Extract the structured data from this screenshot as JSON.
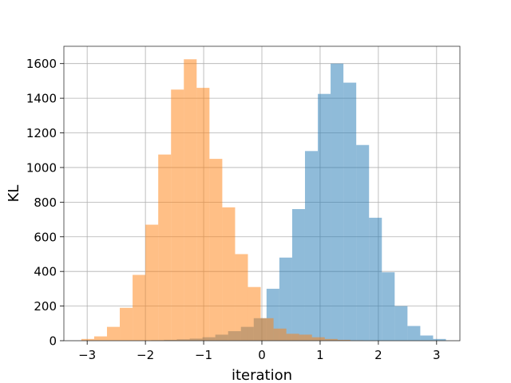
{
  "chart_data": {
    "type": "histogram",
    "title": "",
    "xlabel": "iteration",
    "ylabel": "KL",
    "xlim": [
      -3.4,
      3.4
    ],
    "ylim": [
      0,
      1700
    ],
    "grid": true,
    "legend": "none",
    "bin_width": 0.22,
    "x_ticks": [
      -3,
      -2,
      -1,
      0,
      1,
      2,
      3
    ],
    "y_ticks": [
      0,
      200,
      400,
      600,
      800,
      1000,
      1200,
      1400,
      1600
    ],
    "series": [
      {
        "color": "#1f77b4",
        "opacity": 0.5,
        "bin_left": [
          -1.9,
          -1.68,
          -1.46,
          -1.24,
          -1.02,
          -0.8,
          -0.58,
          -0.36,
          -0.14,
          0.08,
          0.3,
          0.52,
          0.74,
          0.96,
          1.18,
          1.4,
          1.62,
          1.84,
          2.06,
          2.28,
          2.5,
          2.72,
          2.94
        ],
        "counts": [
          3,
          5,
          8,
          12,
          20,
          35,
          55,
          80,
          130,
          300,
          480,
          760,
          1095,
          1425,
          1600,
          1490,
          1130,
          710,
          395,
          200,
          85,
          30,
          10
        ]
      },
      {
        "color": "#ff7f0e",
        "opacity": 0.5,
        "bin_left": [
          -3.1,
          -2.88,
          -2.66,
          -2.44,
          -2.22,
          -2.0,
          -1.78,
          -1.56,
          -1.34,
          -1.12,
          -0.9,
          -0.68,
          -0.46,
          -0.24,
          -0.02,
          0.2,
          0.42,
          0.64,
          0.86,
          1.08,
          1.3,
          1.52
        ],
        "counts": [
          10,
          25,
          80,
          190,
          380,
          670,
          1075,
          1450,
          1625,
          1460,
          1050,
          770,
          500,
          310,
          130,
          70,
          40,
          35,
          20,
          10,
          5,
          2
        ]
      }
    ]
  }
}
